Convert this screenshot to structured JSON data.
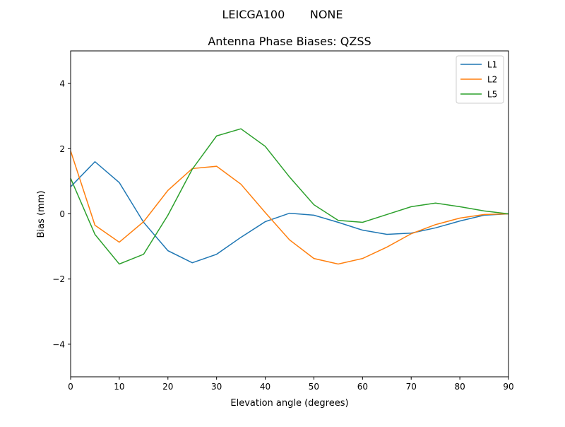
{
  "chart_data": {
    "type": "line",
    "suptitle": "LEICGA100       NONE",
    "title": "Antenna Phase Biases: QZSS",
    "xlabel": "Elevation angle (degrees)",
    "ylabel": "Bias (mm)",
    "xlim": [
      0,
      90
    ],
    "ylim": [
      -5,
      5
    ],
    "xticks": [
      0,
      10,
      20,
      30,
      40,
      50,
      60,
      70,
      80,
      90
    ],
    "yticks": [
      -4,
      -2,
      0,
      2,
      4
    ],
    "ytick_labels": [
      "−4",
      "−2",
      "0",
      "2",
      "4"
    ],
    "grid": false,
    "legend_position": "top-right",
    "x": [
      0,
      5,
      10,
      15,
      20,
      25,
      30,
      35,
      40,
      45,
      50,
      55,
      60,
      65,
      70,
      75,
      80,
      85,
      90
    ],
    "series": [
      {
        "name": "L1",
        "color": "#1f77b4",
        "values": [
          0.83,
          1.6,
          0.96,
          -0.26,
          -1.13,
          -1.5,
          -1.24,
          -0.72,
          -0.24,
          0.02,
          -0.04,
          -0.26,
          -0.5,
          -0.63,
          -0.59,
          -0.43,
          -0.22,
          -0.04,
          0.0
        ]
      },
      {
        "name": "L2",
        "color": "#ff7f0e",
        "values": [
          1.93,
          -0.35,
          -0.87,
          -0.24,
          0.72,
          1.39,
          1.46,
          0.91,
          0.04,
          -0.8,
          -1.37,
          -1.54,
          -1.37,
          -1.02,
          -0.61,
          -0.33,
          -0.13,
          -0.02,
          0.0
        ]
      },
      {
        "name": "L5",
        "color": "#2ca02c",
        "values": [
          1.09,
          -0.63,
          -1.54,
          -1.24,
          -0.04,
          1.37,
          2.39,
          2.61,
          2.07,
          1.13,
          0.28,
          -0.2,
          -0.26,
          -0.02,
          0.22,
          0.33,
          0.22,
          0.09,
          0.0
        ]
      }
    ]
  }
}
